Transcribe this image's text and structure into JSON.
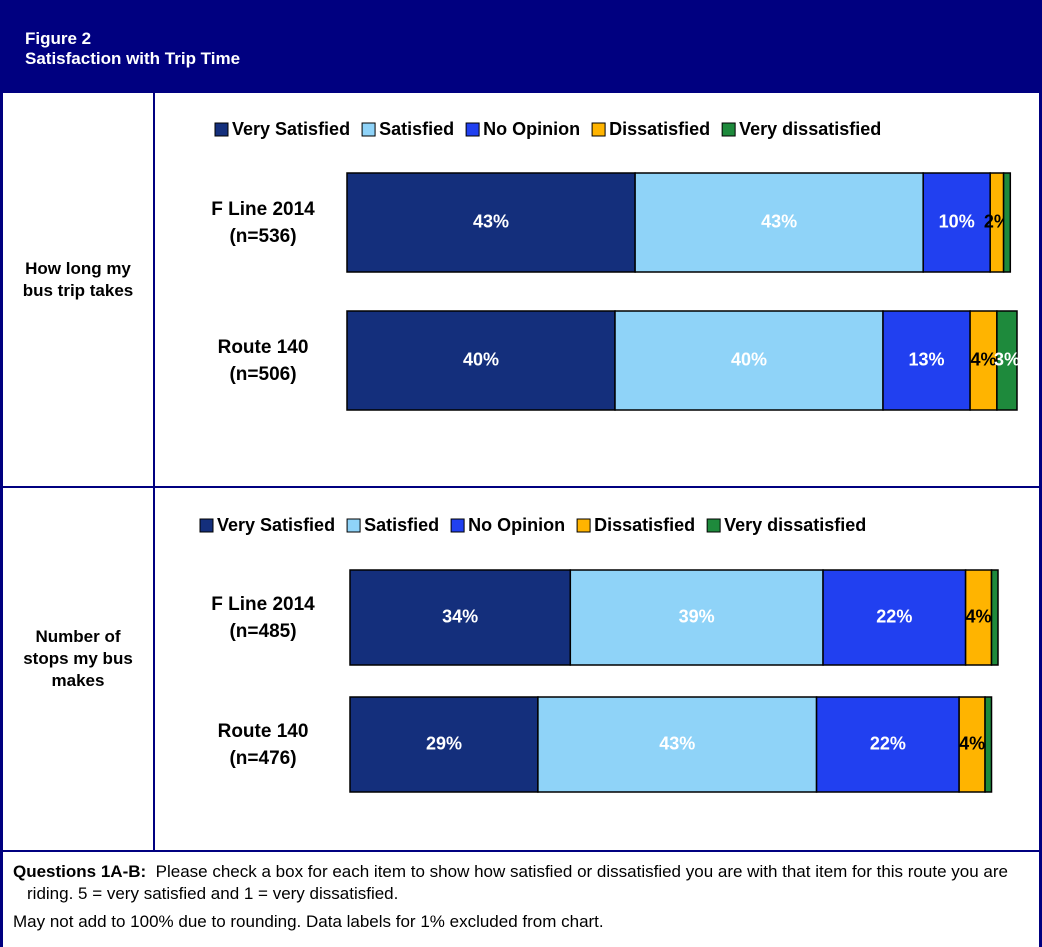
{
  "figure": {
    "number": "Figure 2",
    "title": "Satisfaction with Trip Time"
  },
  "chart_data": [
    {
      "type": "bar",
      "orientation": "horizontal",
      "stacked": true,
      "row_label": "How long my bus trip takes",
      "categories": [
        "F Line 2014 (n=536)",
        "Route 140 (n=506)"
      ],
      "xlim": [
        0,
        100
      ],
      "series": [
        {
          "name": "Very Satisfied",
          "color": "#142f7c",
          "label_color": "#ffffff",
          "values": [
            43,
            40
          ],
          "value_labels": [
            "43%",
            "40%"
          ]
        },
        {
          "name": "Satisfied",
          "color": "#8fd3f8",
          "label_color": "#ffffff",
          "values": [
            43,
            40
          ],
          "value_labels": [
            "43%",
            "40%"
          ]
        },
        {
          "name": "No Opinion",
          "color": "#2140f0",
          "label_color": "#ffffff",
          "values": [
            10,
            13
          ],
          "value_labels": [
            "10%",
            "13%"
          ]
        },
        {
          "name": "Dissatisfied",
          "color": "#ffb400",
          "label_color": "#000000",
          "values": [
            2,
            4
          ],
          "value_labels": [
            "2%",
            "4%"
          ]
        },
        {
          "name": "Very dissatisfied",
          "color": "#1e8a3c",
          "label_color": "#ffffff",
          "values": [
            1,
            3
          ],
          "value_labels": [
            null,
            "3%"
          ]
        }
      ]
    },
    {
      "type": "bar",
      "orientation": "horizontal",
      "stacked": true,
      "row_label": "Number of stops my bus makes",
      "categories": [
        "F Line 2014 (n=485)",
        "Route 140 (n=476)"
      ],
      "xlim": [
        0,
        100
      ],
      "series": [
        {
          "name": "Very Satisfied",
          "color": "#142f7c",
          "label_color": "#ffffff",
          "values": [
            34,
            29
          ],
          "value_labels": [
            "34%",
            "29%"
          ]
        },
        {
          "name": "Satisfied",
          "color": "#8fd3f8",
          "label_color": "#ffffff",
          "values": [
            39,
            43
          ],
          "value_labels": [
            "39%",
            "43%"
          ]
        },
        {
          "name": "No Opinion",
          "color": "#2140f0",
          "label_color": "#ffffff",
          "values": [
            22,
            22
          ],
          "value_labels": [
            "22%",
            "22%"
          ]
        },
        {
          "name": "Dissatisfied",
          "color": "#ffb400",
          "label_color": "#000000",
          "values": [
            4,
            4
          ],
          "value_labels": [
            "4%",
            "4%"
          ]
        },
        {
          "name": "Very dissatisfied",
          "color": "#1e8a3c",
          "label_color": "#ffffff",
          "values": [
            1,
            1
          ],
          "value_labels": [
            null,
            null
          ]
        }
      ]
    }
  ],
  "notes": {
    "question_label": "Questions 1A-B:",
    "question_text": "Please check a box for each item to show how satisfied or dissatisfied you are with that item for this route you are riding.  5 = very satisfied and 1 = very dissatisfied.",
    "footnote": "May not add to 100% due to rounding. Data labels for 1% excluded from chart."
  }
}
